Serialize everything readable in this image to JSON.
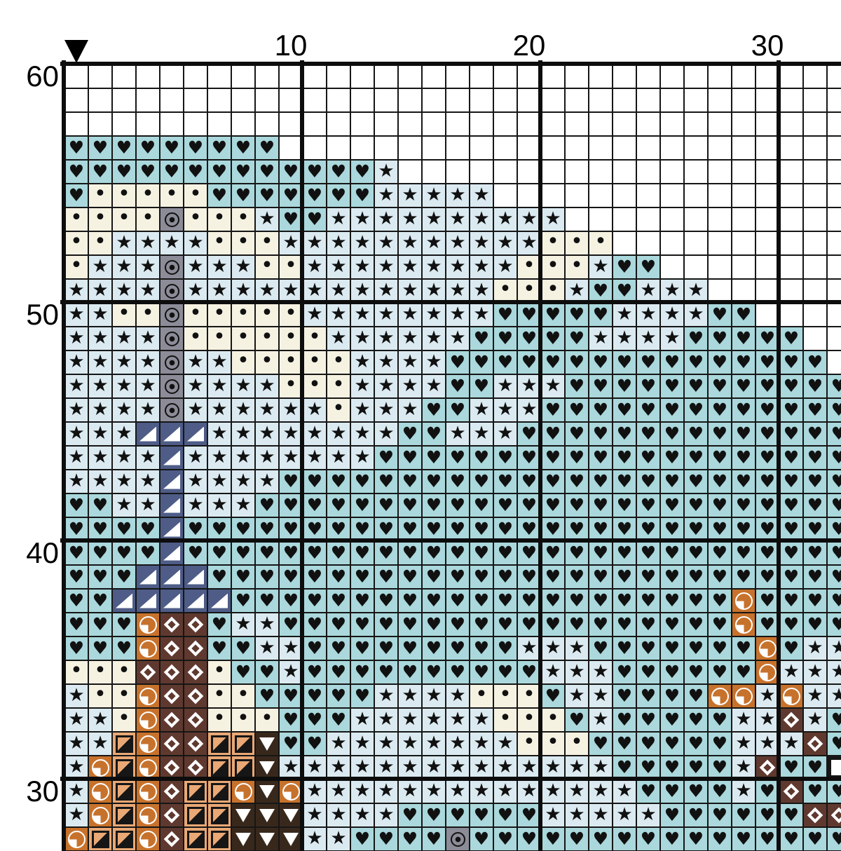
{
  "pattern": {
    "type": "cross-stitch-chart",
    "column_labels": [
      {
        "text": "10",
        "col": 10
      },
      {
        "text": "20",
        "col": 20
      },
      {
        "text": "30",
        "col": 30
      }
    ],
    "row_labels": [
      {
        "text": "60",
        "row": 60
      },
      {
        "text": "50",
        "row": 50
      },
      {
        "text": "40",
        "row": 40
      },
      {
        "text": "30",
        "row": 30
      }
    ],
    "first_visible_row": 60,
    "grid_line_color": "#111111",
    "major_line_color": "#0d0d0d",
    "symbols": {
      "W": {
        "name": "empty",
        "bg": "#ffffff",
        "glyph": ""
      },
      "H": {
        "name": "heart",
        "bg": "#aad8dc",
        "glyph": "♥"
      },
      "S": {
        "name": "star",
        "bg": "#dbeaf1",
        "glyph": "★"
      },
      "D": {
        "name": "dot",
        "bg": "#f6f2e2",
        "glyph": "•"
      },
      "G": {
        "name": "circled-dot",
        "bg": "#8c8c99",
        "glyph": "◉"
      },
      "N": {
        "name": "corner-triangle",
        "bg": "#4e5c87",
        "glyph": "◢"
      },
      "Q": {
        "name": "quarter-circle",
        "bg": "#c7722c",
        "glyph": "◔"
      },
      "T": {
        "name": "half-square",
        "bg": "#e9a875",
        "glyph": "◪"
      },
      "M": {
        "name": "diamond-outline",
        "bg": "#5f392f",
        "glyph": "◇"
      },
      "V": {
        "name": "down-triangle",
        "bg": "#38281c",
        "glyph": "▼"
      },
      "B": {
        "name": "white-square",
        "bg": "#161616",
        "glyph": "▣"
      }
    },
    "rows": [
      "WWWWWWWWWWWWWWWWWWWWWWWWWWWWWWWWW",
      "WWWWWWWWWWWWWWWWWWWWWWWWWWWWWWWWW",
      "WWWWWWWWWWWWWWWWWWWWWWWWWWWWWWWWW",
      "HHHHHHHHHWWWWWWWWWWWWWWWWWWWWWWWW",
      "HHHHHHHHHHHHHSWWWWWWWWWWWWWWWWWWW",
      "HDDDDDHHHHHHHSSSSSWWWWWWWWWWWWWWW",
      "DDDDGDDDSHHSSSSSSSSSSWWWWWWWWWWWW",
      "DDSSSSDDDSSSSSSSSSSSDDDWWWWWWWWWW",
      "DSSSGSSSDDSSSSSSSSSDDDSHHWWWWWWWW",
      "SSSSGSSSSSSSSSSSSSDDDSHHSSSWWWWWW",
      "SSDDGDDDDDSSSSSSSSHHHHHSSSSHHWWWW",
      "SSSSGDDDDDDSSSSSSHHHHHSSSSHHHHHWW",
      "SSSSGSSDDDDDSSSSHHHHHHHHHHHHHHHHW",
      "SSSSGSSSSDDDSSSSHHSSSHHHHHHHHHHHH",
      "SSSSGSSSSSSDSSSHHSSSHHHHHHHHHHHHH",
      "SSSNNNSSSSSSSSHHSSSHHHHHHHHHHHHHH",
      "SSSSNSSSSSSSSHHHHHHHHHHHHHHHHHHHH",
      "SSSSNSSSSHHHHHHHHHHHHHHHHHHHHHHHH",
      "HHSSNSSSHHHHHHHHHHHHHHHHHHHHHHHHH",
      "HHHHNHHHHHHHHHHHHHHHHHHHHHHHHHHHH",
      "HHHHNHHHHHHHHHHHHHHHHHHHHHHHHHHHH",
      "HHHNNNHHHHHHHHHHHHHHHHHHHHHHHHHHH",
      "HHNNNNNHHHHHHHHHHHHHHHHHHHHHQHHHH",
      "HHHQMMHSSHHHHHHHHHHHHHHHHHHHQHHHH",
      "HHHQMMHHSSHHHHHHHHHSSSHHHHHHHQHSS",
      "DDDMMMDHHSHHHHHHHHHHSSSHHHHHHQSSS",
      "SDDQMMDDHHHHHSSSSDDDHSSHHHHQQSQSS",
      "SSDQMMDDDHHHSSSSSSDDDHSHHHHHSSMSH",
      "SSTQMMTTVHHSSSSSSSSDDDHHHHHHSSSMH",
      "SQTQMMTTVSSSSSSSSSSSSSSHHHHHSMHHB",
      "SQTQMTTQVQSSSSSSSSSSSSSSHHHHSHMHH",
      "SQTQMTTVVVSSSSHHHHHHSSSSSHHHHHHMM",
      "QTTQMTTVVVSSHHHHGHHHHHHHHHHHHHHHH"
    ]
  }
}
